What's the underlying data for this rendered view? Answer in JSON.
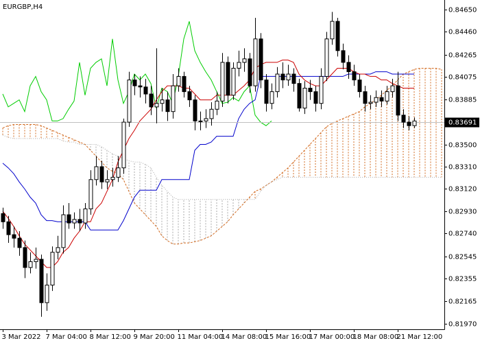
{
  "chart_data": {
    "type": "candlestick",
    "title": "EURGBP,H4",
    "categories": [
      "3 Mar 2022",
      null,
      null,
      null,
      null,
      null,
      null,
      null,
      "7 Mar 04:00",
      null,
      null,
      null,
      null,
      null,
      null,
      null,
      "8 Mar 12:00",
      null,
      null,
      null,
      null,
      null,
      null,
      null,
      "9 Mar 20:00",
      null,
      null,
      null,
      null,
      null,
      null,
      null,
      "11 Mar 04:00",
      null,
      null,
      null,
      null,
      null,
      null,
      null,
      "14 Mar 08:00",
      null,
      null,
      null,
      null,
      null,
      null,
      null,
      "15 Mar 16:00",
      null,
      null,
      null,
      null,
      null,
      null,
      null,
      "17 Mar 00:00",
      null,
      null,
      null,
      null,
      null,
      null,
      null,
      "18 Mar 08:00",
      null,
      null,
      null,
      null,
      null,
      null,
      null,
      "21 Mar 12:00",
      null,
      null,
      null,
      null,
      null,
      null,
      null,
      null
    ],
    "open": [
      0.8291,
      0.8284,
      0.8273,
      0.827,
      0.8262,
      0.8245,
      0.825,
      0.8252,
      0.8215,
      0.823,
      0.8258,
      0.8262,
      0.829,
      0.8283,
      0.8286,
      0.8283,
      0.8295,
      0.832,
      0.8331,
      0.8318,
      0.832,
      0.8322,
      0.833,
      0.8369,
      0.8405,
      0.84,
      0.8399,
      0.8393,
      0.8382,
      0.8385,
      0.8388,
      0.8378,
      0.84,
      0.8408,
      0.8395,
      0.8388,
      0.837,
      0.837,
      0.8372,
      0.838,
      0.8387,
      0.842,
      0.8392,
      0.8415,
      0.842,
      0.8423,
      0.84,
      0.844,
      0.8405,
      0.8385,
      0.8395,
      0.841,
      0.8405,
      0.841,
      0.8402,
      0.8381,
      0.8398,
      0.8395,
      0.8385,
      0.8408,
      0.844,
      0.8455,
      0.843,
      0.842,
      0.8412,
      0.8405,
      0.8395,
      0.8385,
      0.8386,
      0.839,
      0.8387,
      0.8395,
      0.84,
      0.8375,
      0.8369,
      0.8366,
      null,
      null,
      null,
      null,
      null
    ],
    "high": [
      0.8296,
      0.8289,
      0.828,
      0.8276,
      0.8268,
      0.8258,
      0.8262,
      0.8256,
      0.824,
      0.8263,
      0.8272,
      0.8298,
      0.83,
      0.8292,
      0.8295,
      0.83,
      0.8328,
      0.834,
      0.8336,
      0.8328,
      0.833,
      0.834,
      0.8372,
      0.8412,
      0.841,
      0.8408,
      0.8406,
      0.84,
      0.8432,
      0.8398,
      0.8395,
      0.841,
      0.8415,
      0.8412,
      0.84,
      0.8392,
      0.8378,
      0.838,
      0.8386,
      0.8395,
      0.8428,
      0.8425,
      0.842,
      0.843,
      0.8432,
      0.8428,
      0.8458,
      0.8445,
      0.841,
      0.8402,
      0.8416,
      0.842,
      0.8418,
      0.8415,
      0.8406,
      0.8404,
      0.8405,
      0.84,
      0.8415,
      0.8446,
      0.8463,
      0.8458,
      0.8436,
      0.8426,
      0.8418,
      0.841,
      0.84,
      0.8392,
      0.8396,
      0.8396,
      0.84,
      0.8406,
      0.8412,
      0.838,
      0.8374,
      0.8373,
      null,
      null,
      null,
      null,
      null
    ],
    "low": [
      0.8278,
      0.8266,
      0.8262,
      0.8255,
      0.8236,
      0.824,
      0.8244,
      0.8203,
      0.8208,
      0.8225,
      0.8252,
      0.8257,
      0.8278,
      0.8278,
      0.8276,
      0.8278,
      0.829,
      0.8315,
      0.8312,
      0.8312,
      0.8314,
      0.8318,
      0.8325,
      0.8365,
      0.8392,
      0.839,
      0.8385,
      0.8375,
      0.8368,
      0.8378,
      0.837,
      0.8372,
      0.8395,
      0.839,
      0.8382,
      0.8362,
      0.8362,
      0.8364,
      0.8366,
      0.8375,
      0.8382,
      0.8385,
      0.8388,
      0.8408,
      0.8412,
      0.8394,
      0.8395,
      0.8398,
      0.8378,
      0.838,
      0.839,
      0.8398,
      0.84,
      0.8395,
      0.8378,
      0.8376,
      0.8388,
      0.8378,
      0.838,
      0.8404,
      0.8435,
      0.8425,
      0.8414,
      0.8406,
      0.84,
      0.839,
      0.8378,
      0.838,
      0.8382,
      0.8382,
      0.8384,
      0.839,
      0.837,
      0.8364,
      0.8362,
      0.8364,
      null,
      null,
      null,
      null,
      null
    ],
    "close": [
      0.8284,
      0.8273,
      0.827,
      0.8262,
      0.8245,
      0.825,
      0.8252,
      0.8215,
      0.823,
      0.8258,
      0.8262,
      0.829,
      0.8283,
      0.8286,
      0.8283,
      0.8295,
      0.832,
      0.8331,
      0.8318,
      0.832,
      0.8322,
      0.833,
      0.8369,
      0.8405,
      0.84,
      0.8399,
      0.8393,
      0.8382,
      0.8385,
      0.8388,
      0.8378,
      0.84,
      0.8408,
      0.8395,
      0.8388,
      0.837,
      0.837,
      0.8372,
      0.838,
      0.8387,
      0.842,
      0.8392,
      0.8415,
      0.842,
      0.8423,
      0.84,
      0.844,
      0.8405,
      0.8385,
      0.8395,
      0.841,
      0.8405,
      0.841,
      0.8402,
      0.8381,
      0.8398,
      0.8395,
      0.8385,
      0.8408,
      0.844,
      0.8455,
      0.843,
      0.842,
      0.8412,
      0.8405,
      0.8395,
      0.8385,
      0.8386,
      0.839,
      0.8387,
      0.8395,
      0.84,
      0.8375,
      0.8369,
      0.8366,
      0.837,
      null,
      null,
      null,
      null,
      null
    ],
    "up_color": "#ffffff",
    "down_color": "#000000",
    "candle_outline": "#000000",
    "lines": [
      {
        "color": "#d2691e",
        "style": "dashed",
        "cloud": true,
        "values": [
          0.8364,
          0.8366,
          0.8367,
          0.8367,
          0.8367,
          0.8367,
          0.8367,
          0.8366,
          0.8364,
          0.8362,
          0.836,
          0.8358,
          0.8356,
          0.8354,
          0.8352,
          0.835,
          0.8345,
          0.834,
          0.8335,
          0.833,
          0.8327,
          0.8325,
          0.832,
          0.831,
          0.83,
          0.8295,
          0.829,
          0.8285,
          0.828,
          0.8272,
          0.8268,
          0.8265,
          0.8265,
          0.8266,
          0.8266,
          0.8267,
          0.8268,
          0.827,
          0.8272,
          0.8276,
          0.828,
          0.8284,
          0.829,
          0.8295,
          0.83,
          0.8305,
          0.831,
          0.8312,
          0.8315,
          0.8318,
          0.8322,
          0.8326,
          0.833,
          0.8335,
          0.834,
          0.8345,
          0.835,
          0.8355,
          0.836,
          0.8365,
          0.8368,
          0.837,
          0.8372,
          0.8374,
          0.8376,
          0.8378,
          0.8382,
          0.8385,
          0.8388,
          0.8392,
          0.8396,
          0.84,
          0.8405,
          0.841,
          0.8412,
          0.8414,
          0.8415,
          0.8415,
          0.8415,
          0.8415,
          0.8414
        ]
      },
      {
        "color": "#a9a9a9",
        "style": "dotted",
        "cloud": true,
        "values": [
          0.8358,
          0.8356,
          0.8355,
          0.8355,
          0.8355,
          0.8355,
          0.8355,
          0.8355,
          0.8355,
          0.8355,
          0.8355,
          0.8353,
          0.8352,
          0.8352,
          0.835,
          0.835,
          0.835,
          0.835,
          0.8348,
          0.8345,
          0.8342,
          0.834,
          0.8338,
          0.8336,
          0.8335,
          0.8335,
          0.8333,
          0.833,
          0.8322,
          0.8315,
          0.831,
          0.8305,
          0.8303,
          0.8303,
          0.8303,
          0.8303,
          0.8303,
          0.8303,
          0.8303,
          0.8303,
          0.8303,
          0.8303,
          0.8303,
          0.8303,
          0.8303,
          0.8303,
          0.8303,
          0.831,
          0.8315,
          0.8318,
          0.832,
          0.8322,
          0.8322,
          0.8322,
          0.8322,
          0.8322,
          0.8322,
          0.8322,
          0.8322,
          0.8322,
          0.8322,
          0.8322,
          0.8322,
          0.8322,
          0.8322,
          0.8322,
          0.8322,
          0.8322,
          0.8322,
          0.8322,
          0.8322,
          0.8322,
          0.8322,
          0.8322,
          0.8322,
          0.8322,
          0.8322,
          0.8322,
          0.8322,
          0.8322,
          0.8322
        ]
      },
      {
        "color": "#00cc00",
        "style": "solid",
        "values": [
          0.8393,
          0.8382,
          0.8385,
          0.8388,
          0.8378,
          0.84,
          0.8408,
          0.8395,
          0.8388,
          0.837,
          0.837,
          0.8372,
          0.838,
          0.8387,
          0.842,
          0.8392,
          0.8415,
          0.842,
          0.8423,
          0.84,
          0.844,
          0.8405,
          0.8385,
          0.8395,
          0.841,
          0.8405,
          0.841,
          0.8402,
          0.8381,
          0.8398,
          0.8395,
          0.8385,
          0.8408,
          0.844,
          0.8455,
          0.843,
          0.842,
          0.8412,
          0.8405,
          0.8395,
          0.8385,
          0.8386,
          0.839,
          0.8387,
          0.8395,
          0.84,
          0.8375,
          0.8369,
          0.8366,
          0.837,
          null,
          null,
          null,
          null,
          null,
          null,
          null,
          null,
          null,
          null,
          null,
          null,
          null,
          null,
          null,
          null,
          null,
          null,
          null,
          null,
          null,
          null,
          null,
          null,
          null,
          null,
          null,
          null,
          null,
          null,
          null
        ]
      },
      {
        "color": "#0000cc",
        "style": "solid",
        "values": [
          0.8334,
          0.833,
          0.8325,
          0.8318,
          0.8312,
          0.8305,
          0.83,
          0.829,
          0.8285,
          0.8285,
          0.8284,
          0.8284,
          0.8284,
          0.8284,
          0.8284,
          0.8284,
          0.8277,
          0.8277,
          0.8277,
          0.8277,
          0.8277,
          0.8277,
          0.8285,
          0.8295,
          0.8305,
          0.8311,
          0.8311,
          0.8311,
          0.8311,
          0.832,
          0.832,
          0.832,
          0.832,
          0.832,
          0.832,
          0.8345,
          0.835,
          0.835,
          0.8352,
          0.8357,
          0.8357,
          0.8357,
          0.8357,
          0.8372,
          0.838,
          0.8385,
          0.8388,
          0.8408,
          0.8408,
          0.8408,
          0.8408,
          0.8408,
          0.8408,
          0.8408,
          0.8408,
          0.8408,
          0.8408,
          0.8408,
          0.8408,
          0.8408,
          0.8408,
          0.8408,
          0.8408,
          0.841,
          0.841,
          0.841,
          0.841,
          0.841,
          0.8412,
          0.8412,
          0.8412,
          0.841,
          0.841,
          0.841,
          0.841,
          0.841,
          null,
          null,
          null,
          null,
          null
        ]
      },
      {
        "color": "#cc0000",
        "style": "solid",
        "values": [
          0.8293,
          0.8287,
          0.828,
          0.8272,
          0.8265,
          0.826,
          0.8255,
          0.825,
          0.8245,
          0.8245,
          0.825,
          0.8258,
          0.8262,
          0.827,
          0.8276,
          0.8284,
          0.8284,
          0.8295,
          0.83,
          0.831,
          0.832,
          0.8335,
          0.8345,
          0.8355,
          0.8362,
          0.837,
          0.8375,
          0.838,
          0.8388,
          0.8395,
          0.84,
          0.84,
          0.84,
          0.8398,
          0.8398,
          0.8393,
          0.8388,
          0.8388,
          0.8388,
          0.8392,
          0.8392,
          0.8392,
          0.8392,
          0.8396,
          0.84,
          0.8405,
          0.8415,
          0.8418,
          0.842,
          0.842,
          0.842,
          0.8422,
          0.8422,
          0.842,
          0.841,
          0.8405,
          0.8402,
          0.84,
          0.84,
          0.8405,
          0.841,
          0.8415,
          0.8415,
          0.8415,
          0.8412,
          0.841,
          0.841,
          0.8408,
          0.8408,
          0.8405,
          0.8405,
          0.8402,
          0.84,
          0.8398,
          0.8398,
          0.8398,
          null,
          null,
          null,
          null,
          null
        ]
      }
    ],
    "current_price": 0.83691,
    "current_price_color": "#c0c0c0",
    "ylim": [
      0.81923,
      0.84732
    ],
    "yticks": [
      {
        "value": 0.8465,
        "label": "0.84650"
      },
      {
        "value": 0.8446,
        "label": "0.84460"
      },
      {
        "value": 0.84265,
        "label": "0.84265"
      },
      {
        "value": 0.84075,
        "label": "0.84075"
      },
      {
        "value": 0.83885,
        "label": "0.83885"
      },
      {
        "value": 0.835,
        "label": "0.83500"
      },
      {
        "value": 0.8331,
        "label": "0.83310"
      },
      {
        "value": 0.8312,
        "label": "0.83120"
      },
      {
        "value": 0.8293,
        "label": "0.82930"
      },
      {
        "value": 0.8274,
        "label": "0.82740"
      },
      {
        "value": 0.82545,
        "label": "0.82545"
      },
      {
        "value": 0.82355,
        "label": "0.82355"
      },
      {
        "value": 0.82165,
        "label": "0.82165"
      },
      {
        "value": 0.8197,
        "label": "0.81970"
      }
    ]
  }
}
